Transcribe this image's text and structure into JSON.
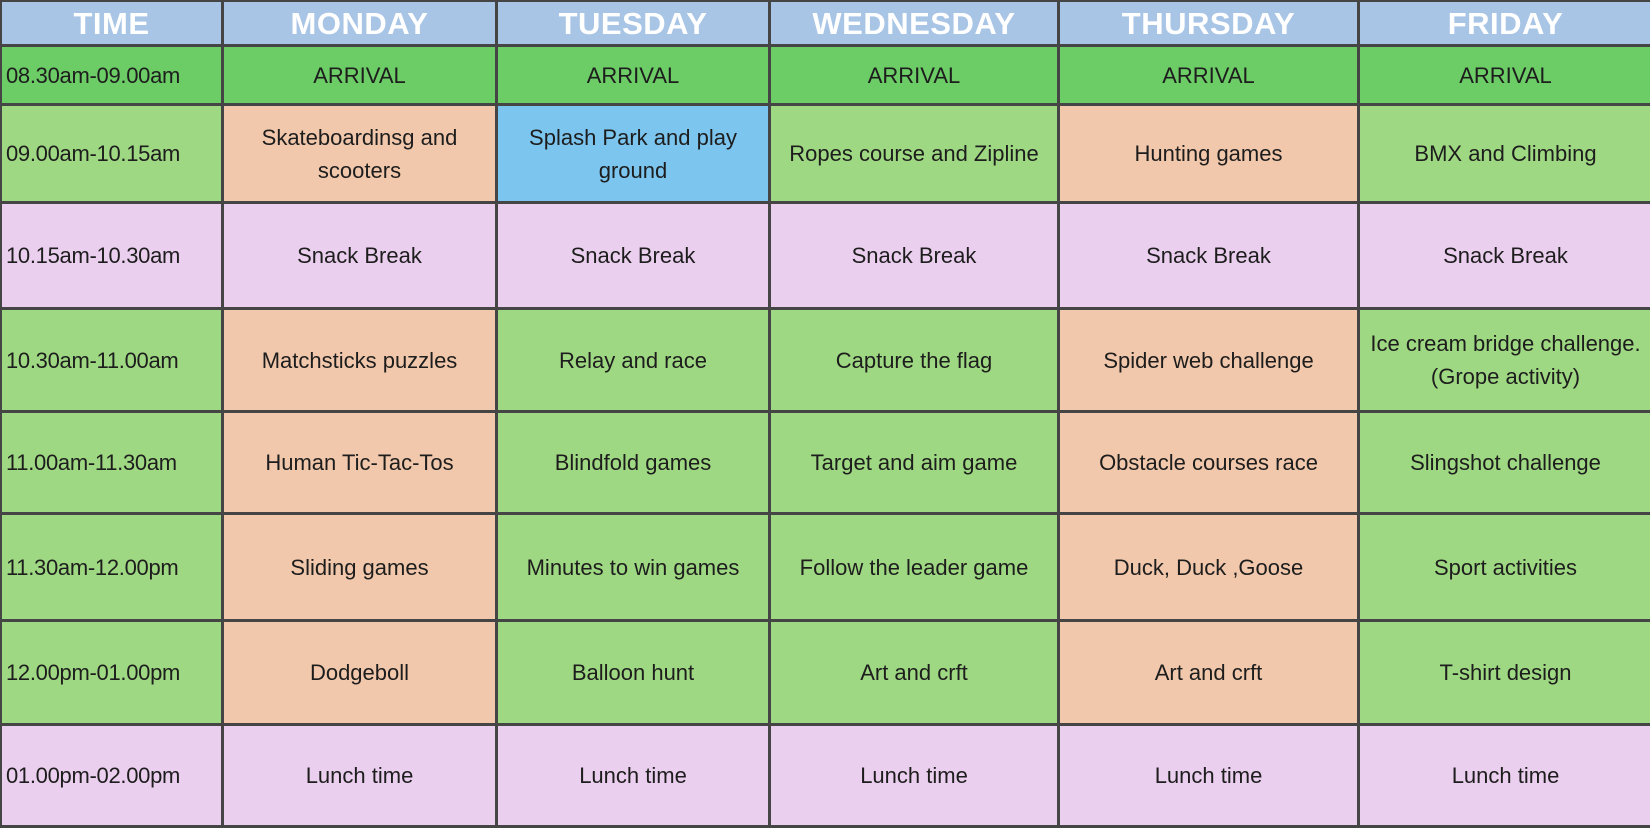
{
  "colors": {
    "header": "#a9c5e6",
    "arrival": "#6ccc66",
    "green": "#9fd882",
    "peach": "#f1c8ab",
    "pink": "#ebcfee",
    "blue": "#7cc5ee"
  },
  "headers": [
    "TIME",
    "MONDAY",
    "TUESDAY",
    "WEDNESDAY",
    "THURSDAY",
    "FRIDAY"
  ],
  "rows": [
    {
      "time": "08.30am-09.00am",
      "time_color": "arrival",
      "cells": [
        {
          "text": "ARRIVAL",
          "color": "arrival"
        },
        {
          "text": "ARRIVAL",
          "color": "arrival"
        },
        {
          "text": "ARRIVAL",
          "color": "arrival"
        },
        {
          "text": "ARRIVAL",
          "color": "arrival"
        },
        {
          "text": "ARRIVAL",
          "color": "arrival"
        }
      ]
    },
    {
      "time": "09.00am-10.15am",
      "time_color": "green",
      "cells": [
        {
          "text": "Skateboardinsg and scooters",
          "color": "peach"
        },
        {
          "text": "Splash Park and play ground",
          "color": "blue"
        },
        {
          "text": "Ropes course and Zipline",
          "color": "green"
        },
        {
          "text": "Hunting games",
          "color": "peach"
        },
        {
          "text": "BMX  and Climbing",
          "color": "green"
        }
      ]
    },
    {
      "time": "10.15am-10.30am",
      "time_color": "pink",
      "cells": [
        {
          "text": "Snack Break",
          "color": "pink"
        },
        {
          "text": "Snack Break",
          "color": "pink"
        },
        {
          "text": "Snack Break",
          "color": "pink"
        },
        {
          "text": "Snack Break",
          "color": "pink"
        },
        {
          "text": "Snack Break",
          "color": "pink"
        }
      ]
    },
    {
      "time": "10.30am-11.00am",
      "time_color": "green",
      "cells": [
        {
          "text": "Matchsticks puzzles",
          "color": "peach"
        },
        {
          "text": "Relay and race",
          "color": "green"
        },
        {
          "text": "Capture the flag",
          "color": "green"
        },
        {
          "text": "Spider web challenge",
          "color": "peach"
        },
        {
          "text": "Ice cream bridge challenge. (Grope activity)",
          "color": "green"
        }
      ]
    },
    {
      "time": "11.00am-11.30am",
      "time_color": "green",
      "cells": [
        {
          "text": "Human Tic-Tac-Tos",
          "color": "peach"
        },
        {
          "text": "Blindfold games",
          "color": "green"
        },
        {
          "text": "Target and aim game",
          "color": "green"
        },
        {
          "text": "Obstacle courses race",
          "color": "peach"
        },
        {
          "text": "Slingshot challenge",
          "color": "green"
        }
      ]
    },
    {
      "time": "11.30am-12.00pm",
      "time_color": "green",
      "cells": [
        {
          "text": "Sliding games",
          "color": "peach"
        },
        {
          "text": "Minutes to win games",
          "color": "green"
        },
        {
          "text": "Follow the leader game",
          "color": "green"
        },
        {
          "text": "Duck, Duck ,Goose",
          "color": "peach"
        },
        {
          "text": "Sport activities",
          "color": "green"
        }
      ]
    },
    {
      "time": "12.00pm-01.00pm",
      "time_color": "green",
      "cells": [
        {
          "text": "Dodgeboll",
          "color": "peach"
        },
        {
          "text": "Balloon hunt",
          "color": "green"
        },
        {
          "text": "Art and crft",
          "color": "green"
        },
        {
          "text": "Art and crft",
          "color": "peach"
        },
        {
          "text": "T-shirt design",
          "color": "green"
        }
      ]
    },
    {
      "time": "01.00pm-02.00pm",
      "time_color": "pink",
      "cells": [
        {
          "text": "Lunch time",
          "color": "pink"
        },
        {
          "text": "Lunch time",
          "color": "pink"
        },
        {
          "text": "Lunch time",
          "color": "pink"
        },
        {
          "text": "Lunch time",
          "color": "pink"
        },
        {
          "text": "Lunch time",
          "color": "pink"
        }
      ]
    }
  ]
}
